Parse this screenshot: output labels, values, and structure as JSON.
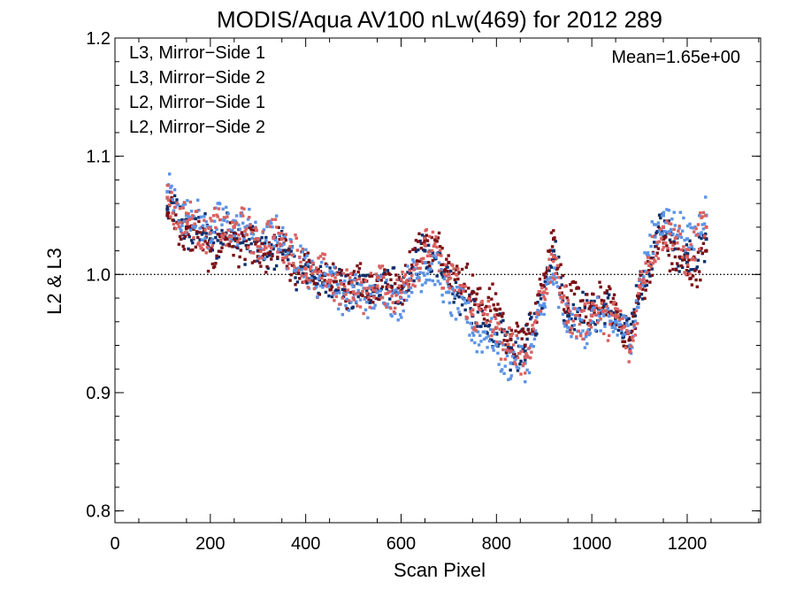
{
  "chart_data": {
    "type": "scatter",
    "title": "MODIS/Aqua AV100 nLw(469) for 2012 289",
    "xlabel": "Scan Pixel",
    "ylabel": "L2 & L3",
    "xlim": [
      0,
      1354
    ],
    "ylim": [
      0.79,
      1.2
    ],
    "xticks": [
      "0",
      "200",
      "400",
      "600",
      "800",
      "1000",
      "1200"
    ],
    "xtick_values": [
      0,
      200,
      400,
      600,
      800,
      1000,
      1200
    ],
    "yticks": [
      "0.8",
      "0.9",
      "1.0",
      "1.1",
      "1.2"
    ],
    "ytick_values": [
      0.8,
      0.9,
      1.0,
      1.1,
      1.2
    ],
    "reference_line": 1.0,
    "annotation": "Mean=1.65e+00",
    "annotation_color": "#d9605f",
    "legend_position": "top-left",
    "grid": false,
    "series": [
      {
        "name": "L3, Mirror−Side 1",
        "color": "#0b2f6e",
        "x": [
          110,
          150,
          200,
          250,
          300,
          350,
          400,
          450,
          500,
          550,
          600,
          650,
          700,
          750,
          800,
          830,
          860,
          900,
          920,
          950,
          1000,
          1050,
          1080,
          1100,
          1150,
          1200,
          1240
        ],
        "y": [
          1.055,
          1.04,
          1.03,
          1.035,
          1.02,
          1.02,
          1.0,
          0.995,
          0.985,
          0.99,
          0.985,
          1.02,
          1.0,
          0.965,
          0.95,
          0.935,
          0.935,
          0.99,
          1.02,
          0.965,
          0.97,
          0.965,
          0.945,
          0.99,
          1.04,
          1.01,
          1.03
        ]
      },
      {
        "name": "L3, Mirror−Side 2",
        "color": "#7a0f14",
        "x": [
          110,
          150,
          200,
          250,
          300,
          350,
          400,
          450,
          500,
          550,
          600,
          650,
          700,
          750,
          800,
          830,
          860,
          900,
          920,
          950,
          1000,
          1050,
          1080,
          1100,
          1150,
          1200,
          1240
        ],
        "y": [
          1.05,
          1.035,
          1.02,
          1.03,
          1.015,
          1.02,
          1.0,
          0.995,
          0.99,
          0.995,
          0.99,
          1.03,
          1.01,
          0.985,
          0.97,
          0.945,
          0.94,
          1.0,
          1.03,
          0.975,
          0.975,
          0.975,
          0.935,
          0.99,
          1.03,
          1.0,
          1.02
        ]
      },
      {
        "name": "L2, Mirror−Side 1",
        "color": "#5b93e6",
        "x": [
          110,
          150,
          200,
          250,
          300,
          350,
          400,
          450,
          500,
          550,
          600,
          650,
          700,
          750,
          800,
          830,
          860,
          900,
          920,
          950,
          1000,
          1050,
          1080,
          1100,
          1150,
          1200,
          1240
        ],
        "y": [
          1.07,
          1.05,
          1.04,
          1.045,
          1.03,
          1.03,
          1.005,
          0.995,
          0.98,
          0.985,
          0.98,
          1.01,
          0.985,
          0.955,
          0.94,
          0.925,
          0.925,
          0.975,
          1.0,
          0.955,
          0.96,
          0.96,
          0.94,
          0.995,
          1.05,
          1.03,
          1.05
        ]
      },
      {
        "name": "L2, Mirror−Side 2",
        "color": "#d9605f",
        "x": [
          110,
          150,
          200,
          250,
          300,
          350,
          400,
          450,
          500,
          550,
          600,
          650,
          700,
          750,
          800,
          830,
          860,
          900,
          920,
          950,
          1000,
          1050,
          1080,
          1100,
          1150,
          1200,
          1240
        ],
        "y": [
          1.065,
          1.045,
          1.035,
          1.04,
          1.03,
          1.03,
          1.005,
          0.995,
          0.985,
          0.99,
          0.985,
          1.025,
          1.0,
          0.97,
          0.955,
          0.935,
          0.93,
          0.985,
          1.015,
          0.96,
          0.965,
          0.965,
          0.935,
          0.99,
          1.04,
          1.015,
          1.04
        ]
      }
    ]
  }
}
